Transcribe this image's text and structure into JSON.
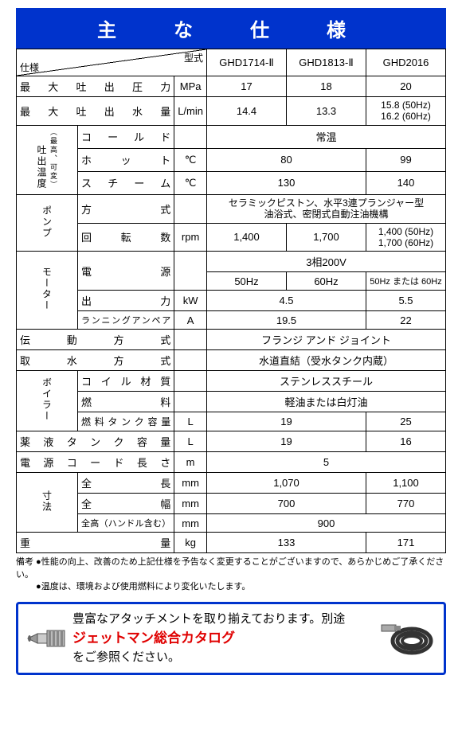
{
  "title": "主　な　仕　様",
  "colors": {
    "primary": "#0033cc",
    "accent": "#e00000",
    "border": "#000000",
    "bg": "#ffffff"
  },
  "header": {
    "spec": "仕様",
    "model": "型式",
    "models": [
      "GHD1714-Ⅱ",
      "GHD1813-Ⅱ",
      "GHD2016"
    ]
  },
  "rows": {
    "maxPressure": {
      "label": "最大吐出圧力",
      "unit": "MPa",
      "v": [
        "17",
        "18",
        "20"
      ]
    },
    "maxFlow": {
      "label": "最大吐出水量",
      "unit": "L/min",
      "v": [
        "14.4",
        "13.3",
        "15.8 (50Hz)\n16.2 (60Hz)"
      ]
    },
    "tempGroup": {
      "label": "吐出温度",
      "sub": "（最高、可変）",
      "cold": {
        "label": "コールド",
        "unit": "",
        "span3": "常温"
      },
      "hot": {
        "label": "ホット",
        "unit": "℃",
        "span2": "80",
        "v3": "99"
      },
      "steam": {
        "label": "スチーム",
        "unit": "℃",
        "span2": "130",
        "v3": "140"
      }
    },
    "pumpGroup": {
      "label": "ポンプ",
      "type": {
        "label": "方式",
        "unit": "",
        "span3": "セラミックピストン、水平3連プランジャー型\n油浴式、密閉式自動注油機構"
      },
      "rpm": {
        "label": "回転数",
        "unit": "rpm",
        "v": [
          "1,400",
          "1,700",
          "1,400 (50Hz)\n1,700 (60Hz)"
        ]
      }
    },
    "motorGroup": {
      "label": "モーター",
      "power1": {
        "label": "電源",
        "unit": "",
        "span3": "3相200V"
      },
      "power2": {
        "v": [
          "50Hz",
          "60Hz",
          "50Hz または 60Hz"
        ]
      },
      "output": {
        "label": "出力",
        "unit": "kW",
        "span2": "4.5",
        "v3": "5.5"
      },
      "amp": {
        "label": "ランニングアンペア",
        "unit": "A",
        "span2": "19.5",
        "v3": "22"
      }
    },
    "drive": {
      "label": "伝動方式",
      "unit": "",
      "span3": "フランジ アンド ジョイント"
    },
    "water": {
      "label": "取水方式",
      "unit": "",
      "span3": "水道直結（受水タンク内蔵）"
    },
    "boilerGroup": {
      "label": "ボイラー",
      "coil": {
        "label": "コイル材質",
        "unit": "",
        "span3": "ステンレススチール"
      },
      "fuel": {
        "label": "燃料",
        "unit": "",
        "span3": "軽油または白灯油"
      },
      "tank": {
        "label": "燃料タンク容量",
        "unit": "L",
        "span2": "19",
        "v3": "25"
      }
    },
    "chem": {
      "label": "薬液タンク容量",
      "unit": "L",
      "span2": "19",
      "v3": "16"
    },
    "cord": {
      "label": "電源コード長さ",
      "unit": "m",
      "span3": "5"
    },
    "dimGroup": {
      "label": "寸法",
      "length": {
        "label": "全長",
        "unit": "mm",
        "span2": "1,070",
        "v3": "1,100"
      },
      "width": {
        "label": "全幅",
        "unit": "mm",
        "span2": "700",
        "v3": "770"
      },
      "height": {
        "label": "全高（ハンドル含む）",
        "unit": "mm",
        "span3": "900"
      }
    },
    "weight": {
      "label": "重量",
      "unit": "kg",
      "span2": "133",
      "v3": "171"
    }
  },
  "notes": [
    "備考 ●性能の向上、改善のため上記仕様を予告なく変更することがございますので、あらかじめご了承ください。",
    "　　 ●温度は、環境および使用燃料により変化いたします。"
  ],
  "catalog": {
    "line1": "豊富なアタッチメントを取り揃えております。別途",
    "line2": "ジェットマン総合カタログ",
    "line3": "をご参照ください。"
  }
}
